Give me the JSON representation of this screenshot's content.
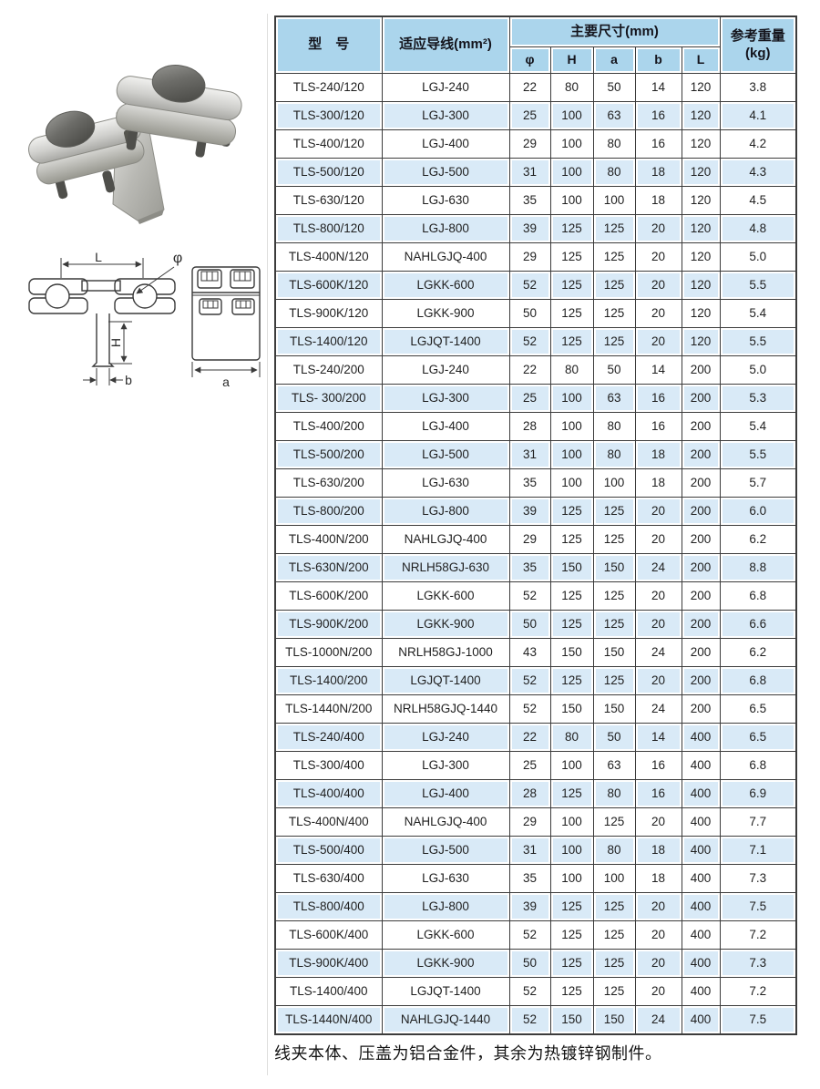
{
  "page": {
    "note": "线夹本体、压盖为铝合金件，其余为热镀锌钢制件。"
  },
  "colors": {
    "header_bg": "#abd5ec",
    "stripe_bg": "#d9eaf7",
    "grid_line": "#3c3c3c"
  },
  "diagram": {
    "labels": {
      "L": "L",
      "phi": "φ",
      "H": "H",
      "b": "b",
      "a": "a"
    }
  },
  "table": {
    "headers": {
      "model": "型　号",
      "conductor": "适应导线(mm²)",
      "dims_group": "主要尺寸(mm)",
      "dims": [
        "φ",
        "H",
        "a",
        "b",
        "L"
      ],
      "weight": "参考重量\n(kg)"
    },
    "rows": [
      [
        "TLS-240/120",
        "LGJ-240",
        "22",
        "80",
        "50",
        "14",
        "120",
        "3.8"
      ],
      [
        "TLS-300/120",
        "LGJ-300",
        "25",
        "100",
        "63",
        "16",
        "120",
        "4.1"
      ],
      [
        "TLS-400/120",
        "LGJ-400",
        "29",
        "100",
        "80",
        "16",
        "120",
        "4.2"
      ],
      [
        "TLS-500/120",
        "LGJ-500",
        "31",
        "100",
        "80",
        "18",
        "120",
        "4.3"
      ],
      [
        "TLS-630/120",
        "LGJ-630",
        "35",
        "100",
        "100",
        "18",
        "120",
        "4.5"
      ],
      [
        "TLS-800/120",
        "LGJ-800",
        "39",
        "125",
        "125",
        "20",
        "120",
        "4.8"
      ],
      [
        "TLS-400N/120",
        "NAHLGJQ-400",
        "29",
        "125",
        "125",
        "20",
        "120",
        "5.0"
      ],
      [
        "TLS-600K/120",
        "LGKK-600",
        "52",
        "125",
        "125",
        "20",
        "120",
        "5.5"
      ],
      [
        "TLS-900K/120",
        "LGKK-900",
        "50",
        "125",
        "125",
        "20",
        "120",
        "5.4"
      ],
      [
        "TLS-1400/120",
        "LGJQT-1400",
        "52",
        "125",
        "125",
        "20",
        "120",
        "5.5"
      ],
      [
        "TLS-240/200",
        "LGJ-240",
        "22",
        "80",
        "50",
        "14",
        "200",
        "5.0"
      ],
      [
        "TLS- 300/200",
        "LGJ-300",
        "25",
        "100",
        "63",
        "16",
        "200",
        "5.3"
      ],
      [
        "TLS-400/200",
        "LGJ-400",
        "28",
        "100",
        "80",
        "16",
        "200",
        "5.4"
      ],
      [
        "TLS-500/200",
        "LGJ-500",
        "31",
        "100",
        "80",
        "18",
        "200",
        "5.5"
      ],
      [
        "TLS-630/200",
        "LGJ-630",
        "35",
        "100",
        "100",
        "18",
        "200",
        "5.7"
      ],
      [
        "TLS-800/200",
        "LGJ-800",
        "39",
        "125",
        "125",
        "20",
        "200",
        "6.0"
      ],
      [
        "TLS-400N/200",
        "NAHLGJQ-400",
        "29",
        "125",
        "125",
        "20",
        "200",
        "6.2"
      ],
      [
        "TLS-630N/200",
        "NRLH58GJ-630",
        "35",
        "150",
        "150",
        "24",
        "200",
        "8.8"
      ],
      [
        "TLS-600K/200",
        "LGKK-600",
        "52",
        "125",
        "125",
        "20",
        "200",
        "6.8"
      ],
      [
        "TLS-900K/200",
        "LGKK-900",
        "50",
        "125",
        "125",
        "20",
        "200",
        "6.6"
      ],
      [
        "TLS-1000N/200",
        "NRLH58GJ-1000",
        "43",
        "150",
        "150",
        "24",
        "200",
        "6.2"
      ],
      [
        "TLS-1400/200",
        "LGJQT-1400",
        "52",
        "125",
        "125",
        "20",
        "200",
        "6.8"
      ],
      [
        "TLS-1440N/200",
        "NRLH58GJQ-1440",
        "52",
        "150",
        "150",
        "24",
        "200",
        "6.5"
      ],
      [
        "TLS-240/400",
        "LGJ-240",
        "22",
        "80",
        "50",
        "14",
        "400",
        "6.5"
      ],
      [
        "TLS-300/400",
        "LGJ-300",
        "25",
        "100",
        "63",
        "16",
        "400",
        "6.8"
      ],
      [
        "TLS-400/400",
        "LGJ-400",
        "28",
        "125",
        "80",
        "16",
        "400",
        "6.9"
      ],
      [
        "TLS-400N/400",
        "NAHLGJQ-400",
        "29",
        "100",
        "125",
        "20",
        "400",
        "7.7"
      ],
      [
        "TLS-500/400",
        "LGJ-500",
        "31",
        "100",
        "80",
        "18",
        "400",
        "7.1"
      ],
      [
        "TLS-630/400",
        "LGJ-630",
        "35",
        "100",
        "100",
        "18",
        "400",
        "7.3"
      ],
      [
        "TLS-800/400",
        "LGJ-800",
        "39",
        "125",
        "125",
        "20",
        "400",
        "7.5"
      ],
      [
        "TLS-600K/400",
        "LGKK-600",
        "52",
        "125",
        "125",
        "20",
        "400",
        "7.2"
      ],
      [
        "TLS-900K/400",
        "LGKK-900",
        "50",
        "125",
        "125",
        "20",
        "400",
        "7.3"
      ],
      [
        "TLS-1400/400",
        "LGJQT-1400",
        "52",
        "125",
        "125",
        "20",
        "400",
        "7.2"
      ],
      [
        "TLS-1440N/400",
        "NAHLGJQ-1440",
        "52",
        "150",
        "150",
        "24",
        "400",
        "7.5"
      ]
    ]
  }
}
